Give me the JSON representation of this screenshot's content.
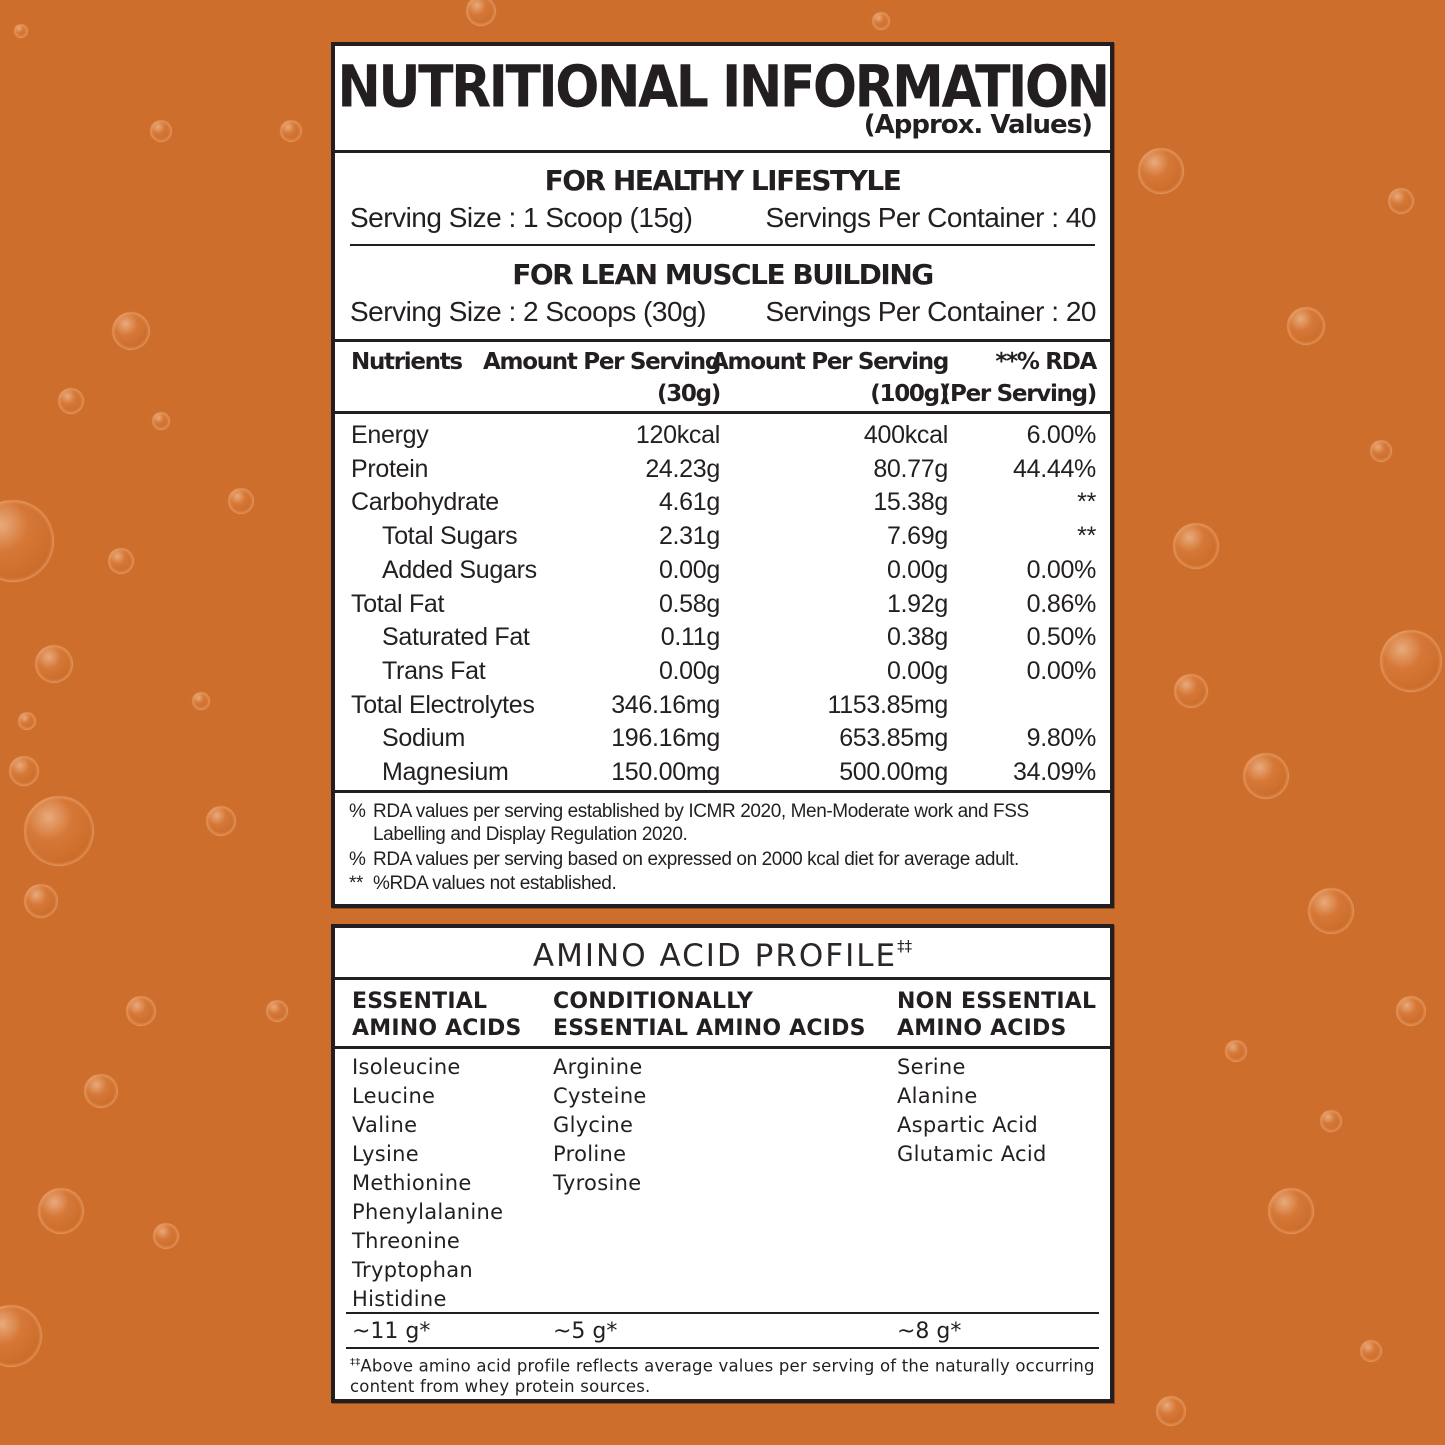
{
  "background_color": "#CD6E2C",
  "panel_border_color": "#231F20",
  "nutrition": {
    "title": "NUTRITIONAL INFORMATION",
    "subtitle": "(Approx. Values)",
    "serving_modes": [
      {
        "heading": "FOR HEALTHY LIFESTYLE",
        "serving_size": "Serving Size : 1 Scoop (15g)",
        "servings_per_container": "Servings Per Container : 40"
      },
      {
        "heading": "FOR LEAN MUSCLE BUILDING",
        "serving_size": "Serving Size : 2 Scoops (30g)",
        "servings_per_container": "Servings Per Container : 20"
      }
    ],
    "table": {
      "headers": {
        "nutrients": "Nutrients",
        "per_serving_1": "Amount Per Serving",
        "per_serving_2": "(30g)",
        "per_100_1": "Amount Per Serving",
        "per_100_2": "(100g)",
        "rda_1": "**% RDA",
        "rda_2": "(Per Serving)"
      },
      "rows": [
        {
          "name": "Energy",
          "per_serving": "120kcal",
          "per_100g": "400kcal",
          "rda": "6.00%",
          "indent": false
        },
        {
          "name": "Protein",
          "per_serving": "24.23g",
          "per_100g": "80.77g",
          "rda": "44.44%",
          "indent": false
        },
        {
          "name": "Carbohydrate",
          "per_serving": "4.61g",
          "per_100g": "15.38g",
          "rda": "**",
          "indent": false
        },
        {
          "name": "Total Sugars",
          "per_serving": "2.31g",
          "per_100g": "7.69g",
          "rda": "**",
          "indent": true
        },
        {
          "name": "Added Sugars",
          "per_serving": "0.00g",
          "per_100g": "0.00g",
          "rda": "0.00%",
          "indent": true
        },
        {
          "name": "Total Fat",
          "per_serving": "0.58g",
          "per_100g": "1.92g",
          "rda": "0.86%",
          "indent": false
        },
        {
          "name": "Saturated Fat",
          "per_serving": "0.11g",
          "per_100g": "0.38g",
          "rda": "0.50%",
          "indent": true
        },
        {
          "name": "Trans Fat",
          "per_serving": "0.00g",
          "per_100g": "0.00g",
          "rda": "0.00%",
          "indent": true
        },
        {
          "name": "Total Electrolytes",
          "per_serving": "346.16mg",
          "per_100g": "1153.85mg",
          "rda": "",
          "indent": false
        },
        {
          "name": "Sodium",
          "per_serving": "196.16mg",
          "per_100g": "653.85mg",
          "rda": "9.80%",
          "indent": true
        },
        {
          "name": "Magnesium",
          "per_serving": "150.00mg",
          "per_100g": "500.00mg",
          "rda": "34.09%",
          "indent": true
        }
      ]
    },
    "footnotes": [
      {
        "marker": "%",
        "text": "RDA values per serving established by ICMR 2020, Men-Moderate work and FSS",
        "cont": "Labelling and Display Regulation 2020."
      },
      {
        "marker": "%",
        "text": "RDA values per serving based on expressed on 2000 kcal diet for average adult."
      },
      {
        "marker": "**",
        "text": "%RDA values not established."
      }
    ]
  },
  "amino": {
    "title": "AMINO ACID PROFILE",
    "title_mark": "‡‡",
    "columns": [
      {
        "heading_1": "ESSENTIAL",
        "heading_2": "AMINO ACIDS",
        "items": [
          "Isoleucine",
          "Leucine",
          "Valine",
          "Lysine",
          "Methionine",
          "Phenylalanine",
          "Threonine",
          "Tryptophan",
          "Histidine"
        ],
        "amount": "~11 g*"
      },
      {
        "heading_1": "CONDITIONALLY",
        "heading_2": "ESSENTIAL AMINO ACIDS",
        "items": [
          "Arginine",
          "Cysteine",
          "Glycine",
          "Proline",
          "Tyrosine"
        ],
        "amount": "~5 g*"
      },
      {
        "heading_1": "NON ESSENTIAL",
        "heading_2": "AMINO ACIDS",
        "items": [
          "Serine",
          "Alanine",
          "Aspartic Acid",
          "Glutamic Acid"
        ],
        "amount": "~8 g*"
      }
    ],
    "note_mark": "‡‡",
    "note": "Above amino acid profile reflects average values per serving of the naturally occurring content from whey protein sources."
  }
}
